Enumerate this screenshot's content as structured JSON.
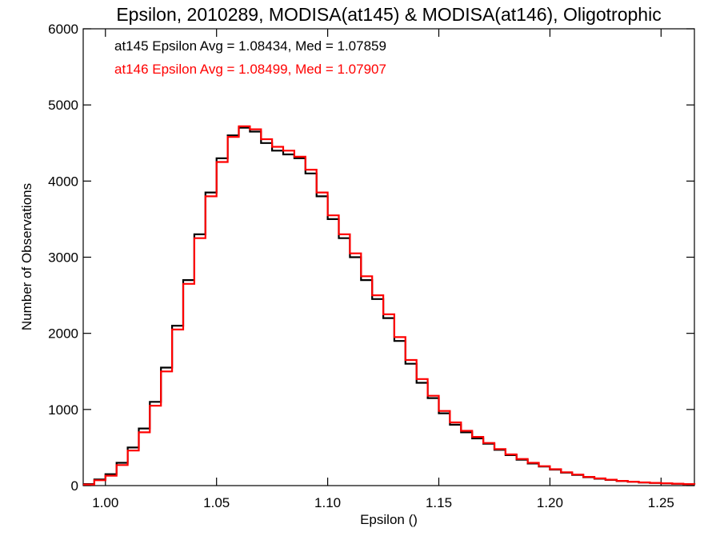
{
  "chart_data": {
    "type": "line",
    "step": true,
    "title": "Epsilon, 2010289, MODISA(at145) & MODISA(at146), Oligotrophic",
    "xlabel": "Epsilon ()",
    "ylabel": "Number of Observations",
    "xlim": [
      0.99,
      1.265
    ],
    "ylim": [
      0,
      6000
    ],
    "xticks": [
      1.0,
      1.05,
      1.1,
      1.15,
      1.2,
      1.25
    ],
    "xtick_labels": [
      "1.00",
      "1.05",
      "1.10",
      "1.15",
      "1.20",
      "1.25"
    ],
    "yticks": [
      0,
      1000,
      2000,
      3000,
      4000,
      5000,
      6000
    ],
    "ytick_labels": [
      "0",
      "1000",
      "2000",
      "3000",
      "4000",
      "5000",
      "6000"
    ],
    "grid": false,
    "annotations": [
      {
        "text": "at145 Epsilon Avg = 1.08434, Med = 1.07859",
        "color": "#000000"
      },
      {
        "text": "at146 Epsilon Avg = 1.08499, Med = 1.07907",
        "color": "#ff0000"
      }
    ],
    "series": [
      {
        "color": "#000000",
        "x": [
          0.99,
          0.995,
          1.0,
          1.005,
          1.01,
          1.015,
          1.02,
          1.025,
          1.03,
          1.035,
          1.04,
          1.045,
          1.05,
          1.055,
          1.06,
          1.065,
          1.07,
          1.075,
          1.08,
          1.085,
          1.09,
          1.095,
          1.1,
          1.105,
          1.11,
          1.115,
          1.12,
          1.125,
          1.13,
          1.135,
          1.14,
          1.145,
          1.15,
          1.155,
          1.16,
          1.165,
          1.17,
          1.175,
          1.18,
          1.185,
          1.19,
          1.195,
          1.2,
          1.205,
          1.21,
          1.215,
          1.22,
          1.225,
          1.23,
          1.235,
          1.24,
          1.245,
          1.25,
          1.255,
          1.26,
          1.265
        ],
        "y": [
          20,
          80,
          150,
          300,
          500,
          750,
          1100,
          1550,
          2100,
          2700,
          3300,
          3850,
          4300,
          4600,
          4700,
          4650,
          4500,
          4400,
          4350,
          4300,
          4100,
          3800,
          3500,
          3250,
          3000,
          2700,
          2450,
          2200,
          1900,
          1600,
          1350,
          1150,
          950,
          800,
          700,
          620,
          550,
          470,
          400,
          340,
          290,
          250,
          210,
          170,
          140,
          110,
          90,
          75,
          60,
          50,
          40,
          35,
          30,
          25,
          20,
          15
        ]
      },
      {
        "color": "#ff0000",
        "x": [
          0.99,
          0.995,
          1.0,
          1.005,
          1.01,
          1.015,
          1.02,
          1.025,
          1.03,
          1.035,
          1.04,
          1.045,
          1.05,
          1.055,
          1.06,
          1.065,
          1.07,
          1.075,
          1.08,
          1.085,
          1.09,
          1.095,
          1.1,
          1.105,
          1.11,
          1.115,
          1.12,
          1.125,
          1.13,
          1.135,
          1.14,
          1.145,
          1.15,
          1.155,
          1.16,
          1.165,
          1.17,
          1.175,
          1.18,
          1.185,
          1.19,
          1.195,
          1.2,
          1.205,
          1.21,
          1.215,
          1.22,
          1.225,
          1.23,
          1.235,
          1.24,
          1.245,
          1.25,
          1.255,
          1.26,
          1.265
        ],
        "y": [
          15,
          70,
          130,
          270,
          460,
          700,
          1050,
          1500,
          2050,
          2650,
          3250,
          3800,
          4250,
          4580,
          4720,
          4680,
          4550,
          4450,
          4400,
          4320,
          4150,
          3850,
          3550,
          3300,
          3050,
          2750,
          2500,
          2250,
          1950,
          1650,
          1400,
          1180,
          980,
          830,
          720,
          640,
          560,
          480,
          410,
          350,
          300,
          255,
          215,
          175,
          145,
          115,
          95,
          78,
          62,
          52,
          42,
          36,
          30,
          25,
          20,
          15
        ]
      }
    ]
  }
}
